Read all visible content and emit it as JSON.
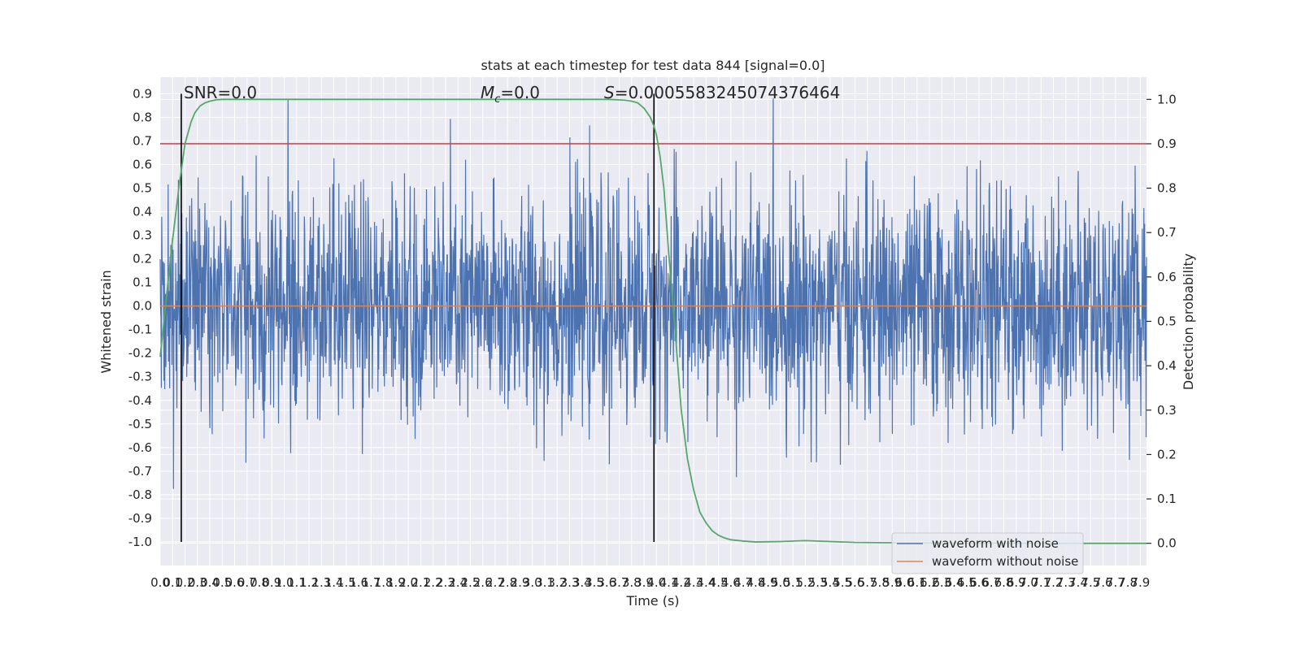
{
  "chart_data": {
    "type": "line",
    "title": "stats at each timestep for test data 844 [signal=0.0]",
    "xlabel": "Time (s)",
    "ylabel": "Whitened strain",
    "ylabel_right": "Detection probability",
    "xlim": [
      0.0,
      7.95
    ],
    "ylim": [
      -1.1,
      0.97
    ],
    "ylim_right": [
      -0.05,
      1.05
    ],
    "x_ticks": [
      "0.0",
      "0.1",
      "0.2",
      "0.3",
      "0.4",
      "0.5",
      "0.6",
      "0.7",
      "0.8",
      "0.9",
      "1.0",
      "1.1",
      "1.2",
      "1.3",
      "1.4",
      "1.5",
      "1.6",
      "1.7",
      "1.8",
      "1.9",
      "2.0",
      "2.1",
      "2.2",
      "2.3",
      "2.4",
      "2.5",
      "2.6",
      "2.7",
      "2.8",
      "2.9",
      "3.0",
      "3.1",
      "3.2",
      "3.3",
      "3.4",
      "3.5",
      "3.6",
      "3.7",
      "3.8",
      "3.9",
      "4.0",
      "4.1",
      "4.2",
      "4.3",
      "4.4",
      "4.5",
      "4.6",
      "4.7",
      "4.8",
      "4.9",
      "5.0",
      "5.1",
      "5.2",
      "5.3",
      "5.4",
      "5.5",
      "5.6",
      "5.7",
      "5.8",
      "5.9",
      "6.0",
      "6.1",
      "6.2",
      "6.3",
      "6.4",
      "6.5",
      "6.6",
      "6.7",
      "6.8",
      "6.9",
      "7.0",
      "7.1",
      "7.2",
      "7.3",
      "7.4",
      "7.5",
      "7.6",
      "7.7",
      "7.8",
      "7.9"
    ],
    "y_ticks": [
      "0.9",
      "0.8",
      "0.7",
      "0.6",
      "0.5",
      "0.4",
      "0.3",
      "0.2",
      "0.1",
      "0.0",
      "-0.1",
      "-0.2",
      "-0.3",
      "-0.4",
      "-0.5",
      "-0.6",
      "-0.7",
      "-0.8",
      "-0.9",
      "-1.0"
    ],
    "y_ticks_right": [
      "1.0",
      "0.9",
      "0.8",
      "0.7",
      "0.6",
      "0.5",
      "0.4",
      "0.3",
      "0.2",
      "0.1",
      "0.0"
    ],
    "series": [
      {
        "name": "waveform with noise",
        "color": "#4c72b0",
        "style": "dense-noise",
        "seed": 844,
        "amplitude_range": [
          -1.0,
          0.88
        ]
      },
      {
        "name": "waveform without noise",
        "color": "#dd8452",
        "x": [
          0.0,
          7.95
        ],
        "values": [
          0.0,
          0.0
        ]
      },
      {
        "name": "",
        "color": "#55a868",
        "axis": "right",
        "x": [
          0.0,
          0.03,
          0.06,
          0.09,
          0.12,
          0.15,
          0.18,
          0.2,
          0.22,
          0.25,
          0.28,
          0.32,
          0.36,
          0.4,
          0.45,
          0.5,
          0.6,
          0.8,
          1.0,
          3.6,
          3.7,
          3.75,
          3.8,
          3.85,
          3.9,
          3.95,
          3.98,
          4.0,
          4.03,
          4.06,
          4.1,
          4.15,
          4.2,
          4.25,
          4.3,
          4.35,
          4.4,
          4.45,
          4.5,
          4.55,
          4.6,
          4.7,
          4.8,
          5.0,
          5.2,
          5.4,
          5.6,
          6.0,
          7.0,
          7.95
        ],
        "values": [
          0.42,
          0.5,
          0.58,
          0.66,
          0.73,
          0.8,
          0.86,
          0.9,
          0.92,
          0.95,
          0.97,
          0.985,
          0.992,
          0.996,
          0.999,
          1.0,
          1.0,
          1.0,
          1.0,
          1.0,
          0.999,
          0.998,
          0.996,
          0.992,
          0.98,
          0.96,
          0.94,
          0.92,
          0.87,
          0.8,
          0.65,
          0.48,
          0.3,
          0.19,
          0.12,
          0.07,
          0.046,
          0.028,
          0.018,
          0.012,
          0.008,
          0.005,
          0.003,
          0.004,
          0.006,
          0.004,
          0.002,
          0.001,
          0.0,
          0.0
        ]
      }
    ],
    "hlines": [
      {
        "y_right": 0.9,
        "color": "#c44e52"
      }
    ],
    "vlines": [
      {
        "x": 0.17,
        "color": "#000000"
      },
      {
        "x": 3.98,
        "color": "#000000"
      }
    ],
    "annotations": {
      "snr": "SNR=0.0",
      "mc_symbol": "M",
      "mc_subscript": "c",
      "mc_value": "=0.0",
      "s_symbol": "S",
      "s_value": "=0.0005583245074376464"
    },
    "legend": {
      "placement": "bottom-right",
      "entries": [
        "waveform with noise",
        "waveform without noise"
      ]
    },
    "grid": true,
    "colors": {
      "background": "#eaeaf2",
      "grid": "#ffffff",
      "text": "#262626"
    }
  }
}
